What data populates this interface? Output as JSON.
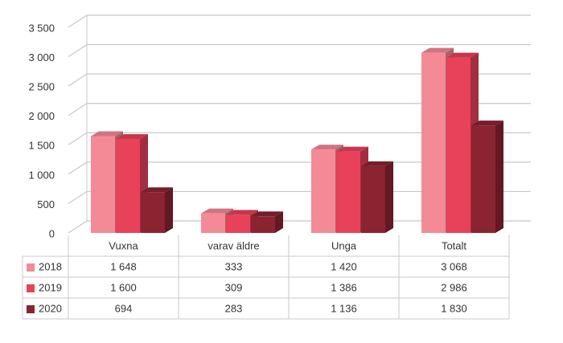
{
  "chart_data": {
    "type": "bar3d",
    "categories": [
      "Vuxna",
      "varav äldre",
      "Unga",
      "Totalt"
    ],
    "series": [
      {
        "name": "2018",
        "color": "#f48a96",
        "values": [
          1648,
          333,
          1420,
          3068
        ],
        "value_labels": [
          "1 648",
          "333",
          "1 420",
          "3 068"
        ]
      },
      {
        "name": "2019",
        "color": "#e8415a",
        "values": [
          1600,
          309,
          1386,
          2986
        ],
        "value_labels": [
          "1 600",
          "309",
          "1 386",
          "2 986"
        ]
      },
      {
        "name": "2020",
        "color": "#8b2330",
        "values": [
          694,
          283,
          1136,
          1830
        ],
        "value_labels": [
          "694",
          "283",
          "1 136",
          "1 830"
        ]
      }
    ],
    "ylim": [
      0,
      3500
    ],
    "yticks": [
      0,
      500,
      {
        "value": 1000,
        "label": "1 000"
      },
      {
        "value": 1500,
        "label": "1 500"
      },
      {
        "value": 2000,
        "label": "2 000"
      },
      {
        "value": 2500,
        "label": "2 500"
      },
      {
        "value": 3000,
        "label": "3 000"
      },
      {
        "value": 3500,
        "label": "3 500"
      }
    ],
    "grid": true
  }
}
